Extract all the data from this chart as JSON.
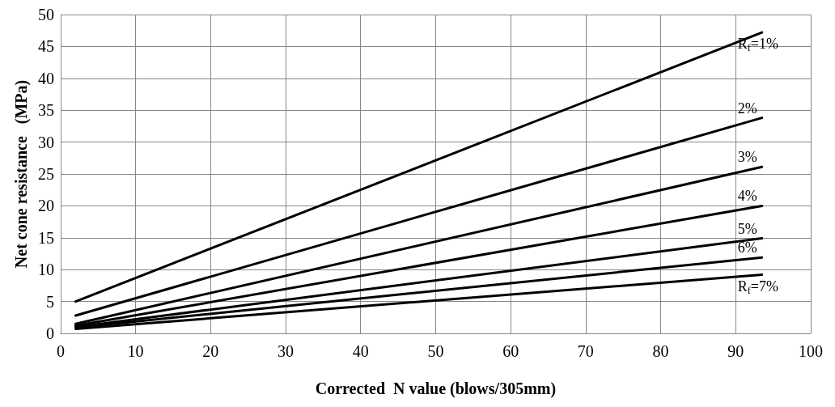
{
  "chart_data": {
    "type": "line",
    "xlabel": "Corrected  N value (blows/305mm)",
    "ylabel": "Net cone resistance   (MPa)",
    "xlim": [
      0,
      100
    ],
    "xticks": [
      0,
      10,
      20,
      30,
      40,
      50,
      60,
      70,
      80,
      90,
      100
    ],
    "ylim": [
      0,
      50
    ],
    "yticks": [
      0,
      5,
      10,
      15,
      20,
      25,
      30,
      35,
      40,
      45,
      50
    ],
    "grid": true,
    "legend": false,
    "marker": "none",
    "line_style": "solid",
    "x": [
      2,
      93.5
    ],
    "series": [
      {
        "name": "R$_{f}$=1%",
        "color": "#000000",
        "values": [
          5,
          47.2
        ]
      },
      {
        "name": "2%",
        "color": "#000000",
        "values": [
          2.8,
          33.8
        ]
      },
      {
        "name": "3%",
        "color": "#000000",
        "values": [
          1.5,
          26.1
        ]
      },
      {
        "name": "4%",
        "color": "#000000",
        "values": [
          1.2,
          20
        ]
      },
      {
        "name": "5%",
        "color": "#000000",
        "values": [
          1,
          14.9
        ]
      },
      {
        "name": "6%",
        "color": "#000000",
        "values": [
          0.9,
          11.9
        ]
      },
      {
        "name": "R$_{f}$=7%",
        "color": "#000000",
        "values": [
          0.7,
          9.2
        ]
      }
    ]
  }
}
